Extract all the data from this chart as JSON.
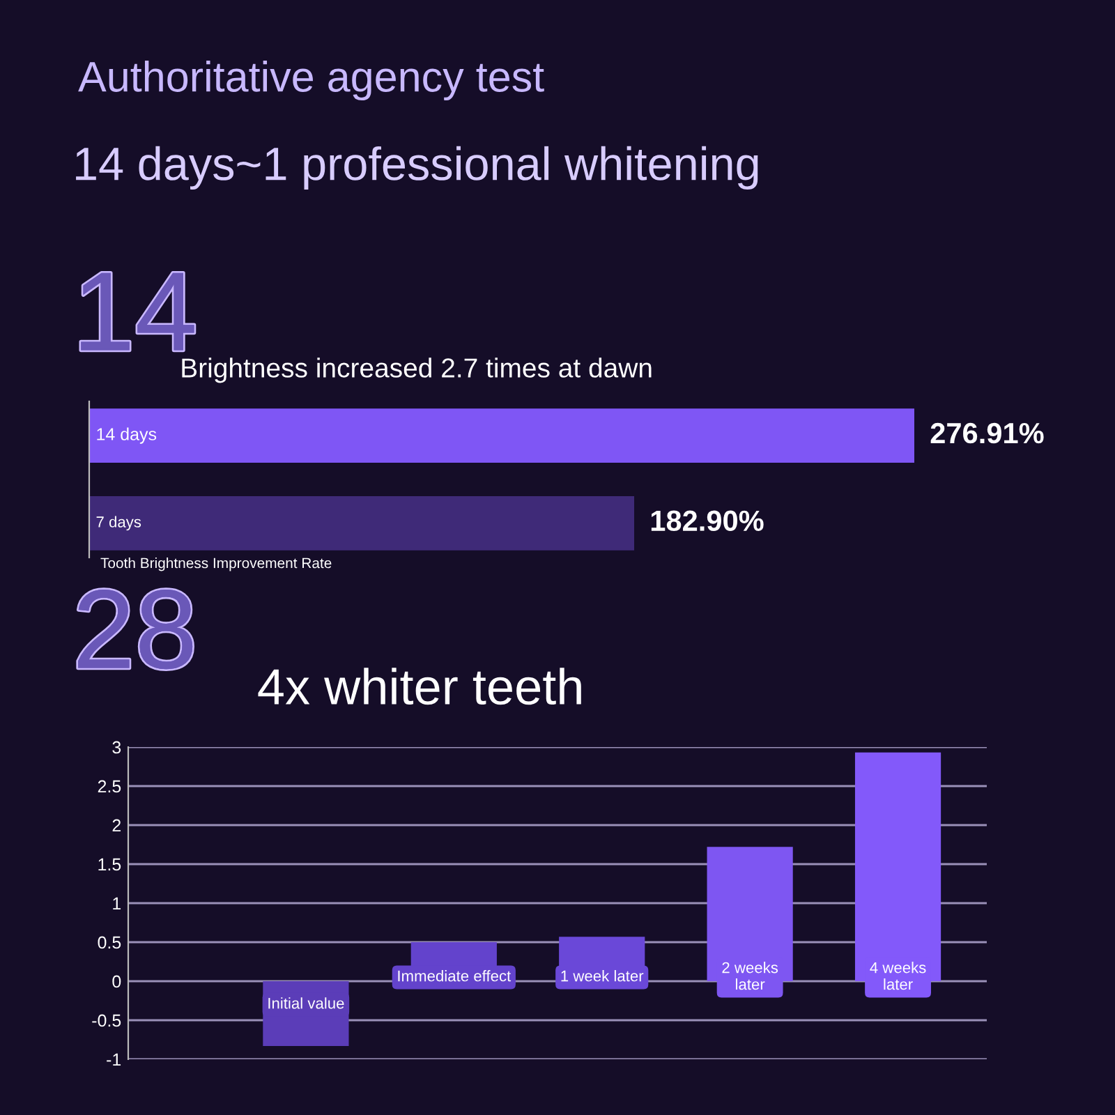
{
  "chart_data": [
    {
      "type": "bar",
      "orientation": "horizontal",
      "title": "Brightness increased 2.7 times at dawn",
      "annotations": [
        "Authoritative agency test",
        "14 days~1 professional whitening",
        "14",
        "Tooth Brightness Improvement Rate"
      ],
      "categories": [
        "14 days",
        "7 days"
      ],
      "values": [
        276.91,
        182.9
      ],
      "colors": [
        "#7f56f5",
        "#3f2a78"
      ],
      "value_labels": [
        "276.91%",
        "182.90%"
      ]
    },
    {
      "type": "bar",
      "title": "4x whiter teeth",
      "annotations": [
        "28"
      ],
      "categories": [
        "Initial value",
        "Immediate effect",
        "1 week later",
        "2 weeks\nlater",
        "4 weeks\nlater"
      ],
      "values": [
        -0.83,
        0.5,
        0.57,
        1.72,
        2.93
      ],
      "colors": [
        "#5b3db8",
        "#6343cc",
        "#6a48d8",
        "#7e56f2",
        "#8359fa"
      ],
      "ylim": [
        -1,
        3
      ],
      "yticks": [
        -1,
        -0.5,
        0,
        0.5,
        1,
        1.5,
        2,
        2.5,
        3
      ],
      "grid": "y"
    }
  ]
}
